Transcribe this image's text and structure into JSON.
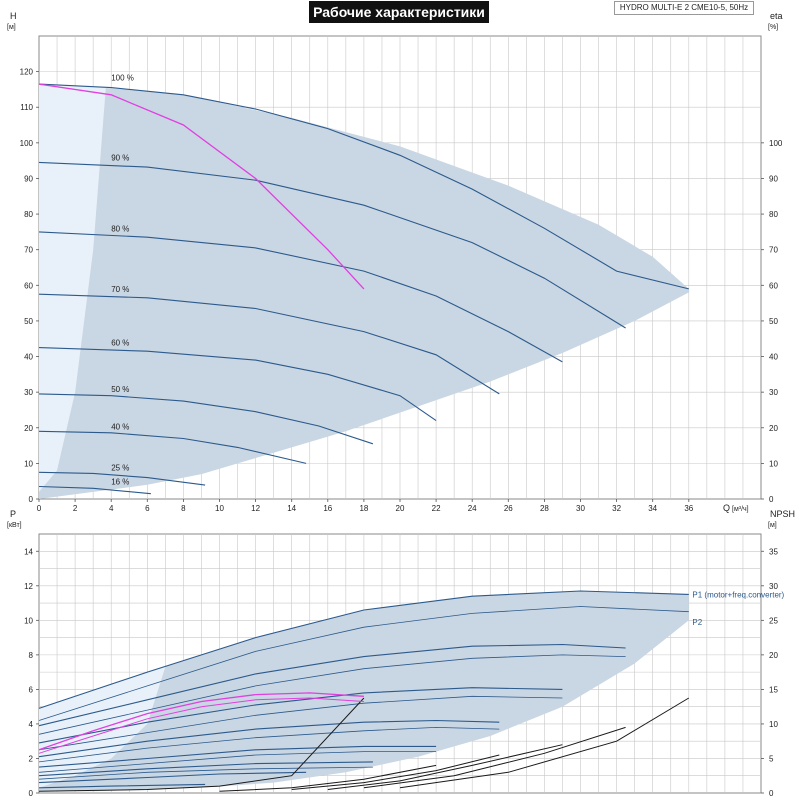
{
  "title": "Рабочие характеристики",
  "model": "HYDRO MULTI-E 2 CME10-5, 50Hz",
  "colors": {
    "band": "#c9d6e3",
    "band_light": "#e8f1fa",
    "curve_blue": "#2c5a8c",
    "curve_black": "#1a1a1a",
    "highlight": "#e040e0",
    "grid": "#c8c8c8"
  },
  "chart_data": [
    {
      "type": "line",
      "name": "head-chart",
      "ylabel_left": "H",
      "ylabel_left_unit": "[м]",
      "ylabel_right": "eta",
      "ylabel_right_unit": "[%]",
      "xlabel": "Q",
      "xlabel_unit": "[м³/ч]",
      "xlim": [
        0,
        40
      ],
      "ylim": [
        0,
        130
      ],
      "ylim_right": [
        0,
        130
      ],
      "x_ticks": [
        0,
        2,
        4,
        6,
        8,
        10,
        12,
        14,
        16,
        18,
        20,
        22,
        24,
        26,
        28,
        30,
        32,
        34,
        36
      ],
      "y_ticks": [
        0,
        10,
        20,
        30,
        40,
        50,
        60,
        70,
        80,
        90,
        100,
        110,
        120
      ],
      "y_ticks_right": [
        0,
        10,
        20,
        30,
        40,
        50,
        60,
        70,
        80,
        90,
        100
      ],
      "grid": true,
      "speed_labels": [
        {
          "text": "100 %",
          "x": 4.0,
          "y": 117
        },
        {
          "text": "90 %",
          "x": 4.0,
          "y": 94.5
        },
        {
          "text": "80 %",
          "x": 4.0,
          "y": 74.5
        },
        {
          "text": "70 %",
          "x": 4.0,
          "y": 57.5
        },
        {
          "text": "60 %",
          "x": 4.0,
          "y": 42.5
        },
        {
          "text": "50 %",
          "x": 4.0,
          "y": 29.5
        },
        {
          "text": "40 %",
          "x": 4.0,
          "y": 19.0
        },
        {
          "text": "25 %",
          "x": 4.0,
          "y": 7.5
        },
        {
          "text": "16 %",
          "x": 4.0,
          "y": 3.5
        }
      ],
      "head_curves": [
        {
          "speed": 100,
          "x": [
            0,
            4,
            8,
            12,
            16,
            20,
            24,
            28,
            32,
            36
          ],
          "y": [
            116.5,
            115.5,
            113.5,
            109.5,
            104,
            96.5,
            87,
            76,
            64,
            59
          ]
        },
        {
          "speed": 90,
          "x": [
            0,
            6,
            12,
            18,
            24,
            28,
            32.5
          ],
          "y": [
            94.5,
            93.2,
            89.5,
            82.5,
            72,
            62,
            48
          ]
        },
        {
          "speed": 80,
          "x": [
            0,
            6,
            12,
            18,
            22,
            26,
            29
          ],
          "y": [
            75,
            73.5,
            70.5,
            64,
            57,
            47,
            38.5
          ]
        },
        {
          "speed": 70,
          "x": [
            0,
            6,
            12,
            18,
            22,
            25.5
          ],
          "y": [
            57.5,
            56.5,
            53.5,
            47,
            40.5,
            29.5
          ]
        },
        {
          "speed": 60,
          "x": [
            0,
            6,
            12,
            16,
            20,
            22
          ],
          "y": [
            42.5,
            41.5,
            39,
            35,
            29,
            22
          ]
        },
        {
          "speed": 50,
          "x": [
            0,
            4,
            8,
            12,
            15.5,
            18.5
          ],
          "y": [
            29.5,
            29,
            27.5,
            24.5,
            20.5,
            15.5
          ]
        },
        {
          "speed": 40,
          "x": [
            0,
            4,
            8,
            11,
            14.8
          ],
          "y": [
            19,
            18.6,
            17,
            14.5,
            10
          ]
        },
        {
          "speed": 25,
          "x": [
            0,
            3,
            6,
            9.2
          ],
          "y": [
            7.5,
            7.2,
            6,
            3.9
          ]
        },
        {
          "speed": 16,
          "x": [
            0,
            3,
            6.2
          ],
          "y": [
            3.5,
            3,
            1.5
          ]
        }
      ],
      "highlight_curve": {
        "x": [
          0,
          4,
          8,
          12,
          16,
          18
        ],
        "y": [
          116.5,
          113.5,
          105,
          90,
          70,
          59
        ]
      },
      "envelope": {
        "x": [
          0,
          3.5,
          8,
          14,
          20,
          26,
          31,
          34,
          36,
          36,
          33,
          29,
          25,
          21,
          17,
          13,
          9,
          6,
          3,
          0
        ],
        "y": [
          116.5,
          115.5,
          113.5,
          107,
          99,
          88,
          77,
          68,
          59,
          58,
          50,
          41,
          33,
          26,
          19,
          13,
          7,
          4,
          2,
          0
        ]
      },
      "light_region": {
        "x": [
          0,
          3.7,
          3.0,
          2.0,
          1.0,
          0
        ],
        "y": [
          116.5,
          115.5,
          70,
          30,
          8,
          2
        ]
      }
    },
    {
      "type": "line",
      "name": "power-chart",
      "ylabel_left": "P",
      "ylabel_left_unit": "[кВт]",
      "ylabel_right": "NPSH",
      "ylabel_right_unit": "[м]",
      "xlim": [
        0,
        40
      ],
      "ylim": [
        0,
        15
      ],
      "ylim_right": [
        0,
        37.5
      ],
      "y_ticks": [
        0,
        2,
        4,
        6,
        8,
        10,
        12,
        14
      ],
      "y_ticks_right": [
        0,
        5,
        10,
        15,
        20,
        25,
        30,
        35
      ],
      "grid": true,
      "series_labels": [
        {
          "text": "P1 (motor+freq.converter)",
          "x": 36.2,
          "y": 11.5
        },
        {
          "text": "P2",
          "x": 36.2,
          "y": 9.9
        }
      ],
      "p1_curves": [
        {
          "x": [
            0,
            6,
            12,
            18,
            24,
            30,
            36
          ],
          "y": [
            4.9,
            7.0,
            9.0,
            10.6,
            11.4,
            11.7,
            11.5
          ]
        },
        {
          "x": [
            0,
            6,
            12,
            18,
            24,
            29,
            32.5
          ],
          "y": [
            3.9,
            5.4,
            6.9,
            7.9,
            8.5,
            8.6,
            8.4
          ]
        },
        {
          "x": [
            0,
            6,
            12,
            18,
            24,
            29
          ],
          "y": [
            2.9,
            4.1,
            5.1,
            5.8,
            6.1,
            6.0
          ]
        },
        {
          "x": [
            0,
            6,
            12,
            18,
            22,
            25.5
          ],
          "y": [
            2.1,
            3.0,
            3.7,
            4.1,
            4.2,
            4.1
          ]
        },
        {
          "x": [
            0,
            6,
            12,
            18,
            22
          ],
          "y": [
            1.5,
            2.0,
            2.5,
            2.7,
            2.7
          ]
        },
        {
          "x": [
            0,
            6,
            12,
            18.5
          ],
          "y": [
            1.0,
            1.4,
            1.7,
            1.8
          ]
        },
        {
          "x": [
            0,
            6,
            10,
            14.8
          ],
          "y": [
            0.6,
            0.9,
            1.1,
            1.2
          ]
        },
        {
          "x": [
            0,
            4,
            9.2
          ],
          "y": [
            0.3,
            0.4,
            0.5
          ]
        }
      ],
      "p2_curves": [
        {
          "x": [
            0,
            6,
            12,
            18,
            24,
            30,
            36
          ],
          "y": [
            4.2,
            6.2,
            8.2,
            9.6,
            10.4,
            10.8,
            10.5
          ]
        },
        {
          "x": [
            0,
            6,
            12,
            18,
            24,
            29,
            32.5
          ],
          "y": [
            3.4,
            4.8,
            6.2,
            7.2,
            7.8,
            8.0,
            7.9
          ]
        },
        {
          "x": [
            0,
            6,
            12,
            18,
            24,
            29
          ],
          "y": [
            2.5,
            3.5,
            4.5,
            5.2,
            5.6,
            5.5
          ]
        },
        {
          "x": [
            0,
            6,
            12,
            18,
            22,
            25.5
          ],
          "y": [
            1.8,
            2.6,
            3.2,
            3.6,
            3.8,
            3.7
          ]
        },
        {
          "x": [
            0,
            6,
            12,
            18,
            22
          ],
          "y": [
            1.2,
            1.7,
            2.2,
            2.4,
            2.4
          ]
        },
        {
          "x": [
            0,
            6,
            12,
            18.5
          ],
          "y": [
            0.8,
            1.2,
            1.4,
            1.5
          ]
        }
      ],
      "highlight_curve": {
        "x": [
          0,
          3,
          6,
          9,
          12,
          15,
          18
        ],
        "y": [
          2.5,
          3.6,
          4.6,
          5.3,
          5.7,
          5.8,
          5.6
        ]
      },
      "highlight_curve2": {
        "x": [
          0,
          3,
          6,
          9,
          12,
          15,
          18
        ],
        "y": [
          2.3,
          3.3,
          4.3,
          5.0,
          5.4,
          5.5,
          5.3
        ]
      },
      "npsh_curves": [
        {
          "x": [
            10,
            14,
            18,
            22
          ],
          "y": [
            0.1,
            0.3,
            0.8,
            1.6
          ]
        },
        {
          "x": [
            14,
            18,
            22,
            25.5
          ],
          "y": [
            0.2,
            0.6,
            1.3,
            2.2
          ]
        },
        {
          "x": [
            16,
            20,
            24,
            29
          ],
          "y": [
            0.2,
            0.7,
            1.6,
            2.8
          ]
        },
        {
          "x": [
            18,
            23,
            28,
            32.5
          ],
          "y": [
            0.3,
            1.0,
            2.3,
            3.8
          ]
        },
        {
          "x": [
            20,
            26,
            32,
            36
          ],
          "y": [
            0.3,
            1.2,
            3.0,
            5.5
          ]
        },
        {
          "x": [
            0,
            6,
            10,
            14,
            18
          ],
          "y": [
            0.1,
            0.2,
            0.4,
            1.0,
            5.5
          ]
        }
      ],
      "envelope": {
        "x": [
          0,
          6,
          12,
          18,
          24,
          30,
          36,
          36,
          33,
          29,
          25,
          21,
          17,
          13,
          9,
          6,
          3,
          0
        ],
        "y": [
          4.9,
          7.0,
          9.0,
          10.6,
          11.4,
          11.7,
          11.5,
          10.0,
          7.5,
          5.0,
          3.3,
          2.1,
          1.2,
          0.6,
          0.3,
          0.2,
          0.1,
          0.1
        ]
      },
      "light_region": {
        "x": [
          0,
          7,
          6,
          4,
          2,
          0
        ],
        "y": [
          4.9,
          7.3,
          4.0,
          2.0,
          1.0,
          0.3
        ]
      }
    }
  ]
}
